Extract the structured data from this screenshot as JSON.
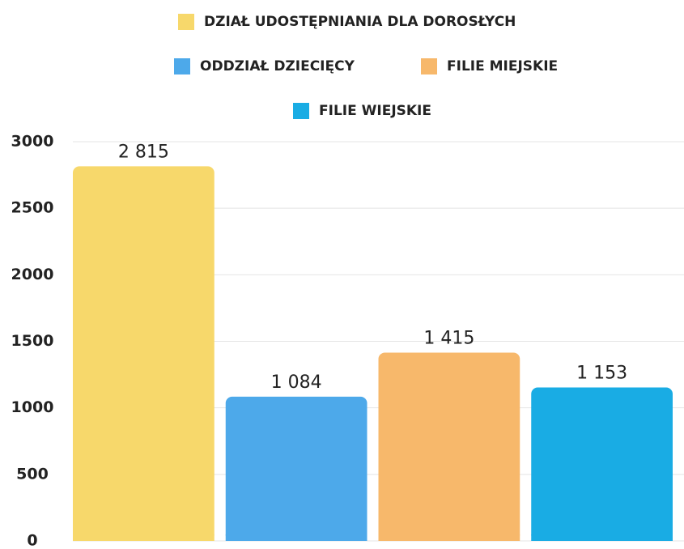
{
  "chart_data": {
    "type": "bar",
    "categories": [
      null
    ],
    "series": [
      {
        "name": "DZIAŁ UDOSTĘPNIANIA DLA DOROSŁYCH",
        "color": "#f7d86b",
        "values": [
          2815
        ],
        "value_labels": [
          "2 815"
        ]
      },
      {
        "name": "ODDZIAŁ DZIECIĘCY",
        "color": "#4da9ea",
        "values": [
          1084
        ],
        "value_labels": [
          "1 084"
        ]
      },
      {
        "name": "FILIE MIEJSKIE",
        "color": "#f7b86b",
        "values": [
          1415
        ],
        "value_labels": [
          "1 415"
        ]
      },
      {
        "name": "FILIE WIEJSKIE",
        "color": "#19ace4",
        "values": [
          1153
        ],
        "value_labels": [
          "1 153"
        ]
      }
    ],
    "ylim": [
      0,
      3000
    ],
    "yticks": [
      0,
      500,
      1000,
      1500,
      2000,
      2500,
      3000
    ],
    "grid": true
  }
}
